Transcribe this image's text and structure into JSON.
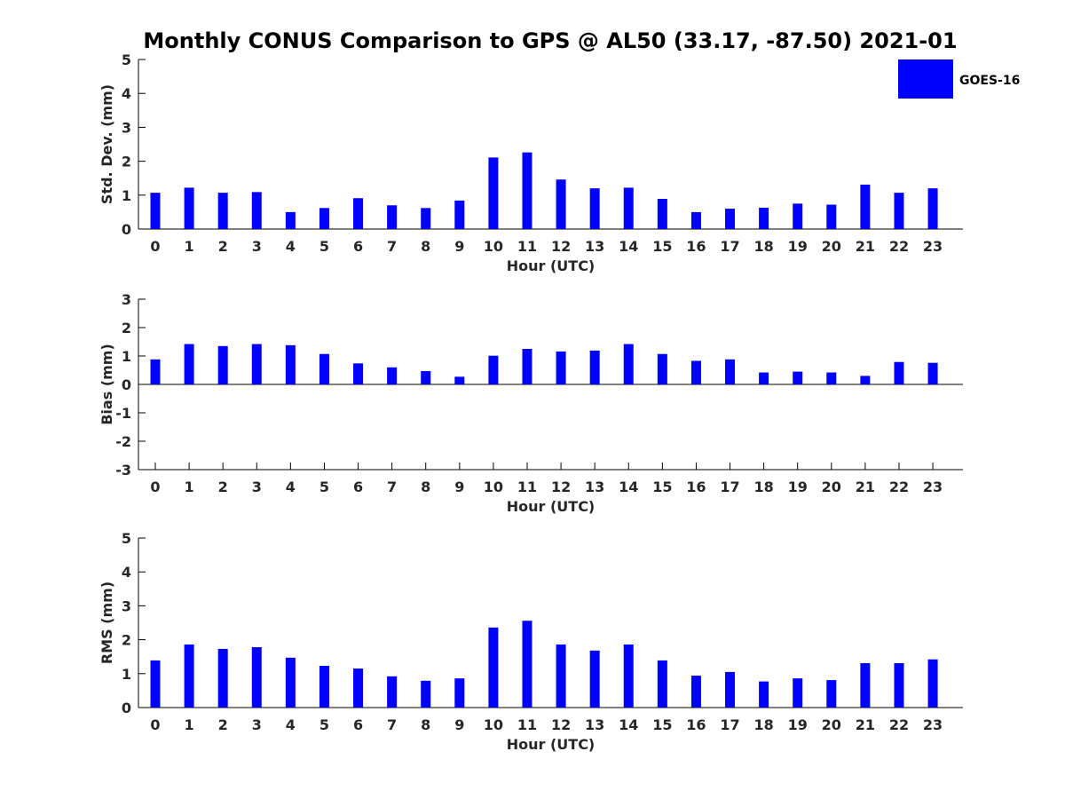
{
  "figure": {
    "title": "Monthly CONUS Comparison to GPS @ AL50 (33.17, -87.50) 2021-01"
  },
  "legend": {
    "label": "GOES-16",
    "color": "#0000ff",
    "placement": "top-right"
  },
  "chart_data": [
    {
      "type": "bar",
      "xlabel": "Hour (UTC)",
      "ylabel": "Std. Dev. (mm)",
      "ylim": [
        0,
        5
      ],
      "yticks": [
        0,
        1,
        2,
        3,
        4,
        5
      ],
      "categories": [
        "0",
        "1",
        "2",
        "3",
        "4",
        "5",
        "6",
        "7",
        "8",
        "9",
        "10",
        "11",
        "12",
        "13",
        "14",
        "15",
        "16",
        "17",
        "18",
        "19",
        "20",
        "21",
        "22",
        "23"
      ],
      "series": [
        {
          "name": "GOES-16",
          "values": [
            1.07,
            1.22,
            1.07,
            1.09,
            0.5,
            0.62,
            0.91,
            0.7,
            0.62,
            0.84,
            2.11,
            2.26,
            1.46,
            1.2,
            1.22,
            0.89,
            0.5,
            0.6,
            0.63,
            0.75,
            0.72,
            1.31,
            1.07,
            1.2
          ]
        }
      ]
    },
    {
      "type": "bar",
      "xlabel": "Hour (UTC)",
      "ylabel": "Bias (mm)",
      "ylim": [
        -3,
        3
      ],
      "yticks": [
        -3,
        -2,
        -1,
        0,
        1,
        2,
        3
      ],
      "categories": [
        "0",
        "1",
        "2",
        "3",
        "4",
        "5",
        "6",
        "7",
        "8",
        "9",
        "10",
        "11",
        "12",
        "13",
        "14",
        "15",
        "16",
        "17",
        "18",
        "19",
        "20",
        "21",
        "22",
        "23"
      ],
      "series": [
        {
          "name": "GOES-16",
          "values": [
            0.88,
            1.42,
            1.35,
            1.42,
            1.38,
            1.07,
            0.74,
            0.6,
            0.47,
            0.27,
            1.01,
            1.25,
            1.16,
            1.19,
            1.42,
            1.07,
            0.83,
            0.88,
            0.42,
            0.45,
            0.42,
            0.3,
            0.79,
            0.76
          ]
        }
      ]
    },
    {
      "type": "bar",
      "xlabel": "Hour (UTC)",
      "ylabel": "RMS (mm)",
      "ylim": [
        0,
        5
      ],
      "yticks": [
        0,
        1,
        2,
        3,
        4,
        5
      ],
      "categories": [
        "0",
        "1",
        "2",
        "3",
        "4",
        "5",
        "6",
        "7",
        "8",
        "9",
        "10",
        "11",
        "12",
        "13",
        "14",
        "15",
        "16",
        "17",
        "18",
        "19",
        "20",
        "21",
        "22",
        "23"
      ],
      "series": [
        {
          "name": "GOES-16",
          "values": [
            1.39,
            1.86,
            1.73,
            1.78,
            1.47,
            1.23,
            1.15,
            0.92,
            0.79,
            0.86,
            2.36,
            2.56,
            1.86,
            1.68,
            1.86,
            1.39,
            0.94,
            1.05,
            0.77,
            0.86,
            0.81,
            1.31,
            1.31,
            1.42
          ]
        }
      ]
    }
  ]
}
